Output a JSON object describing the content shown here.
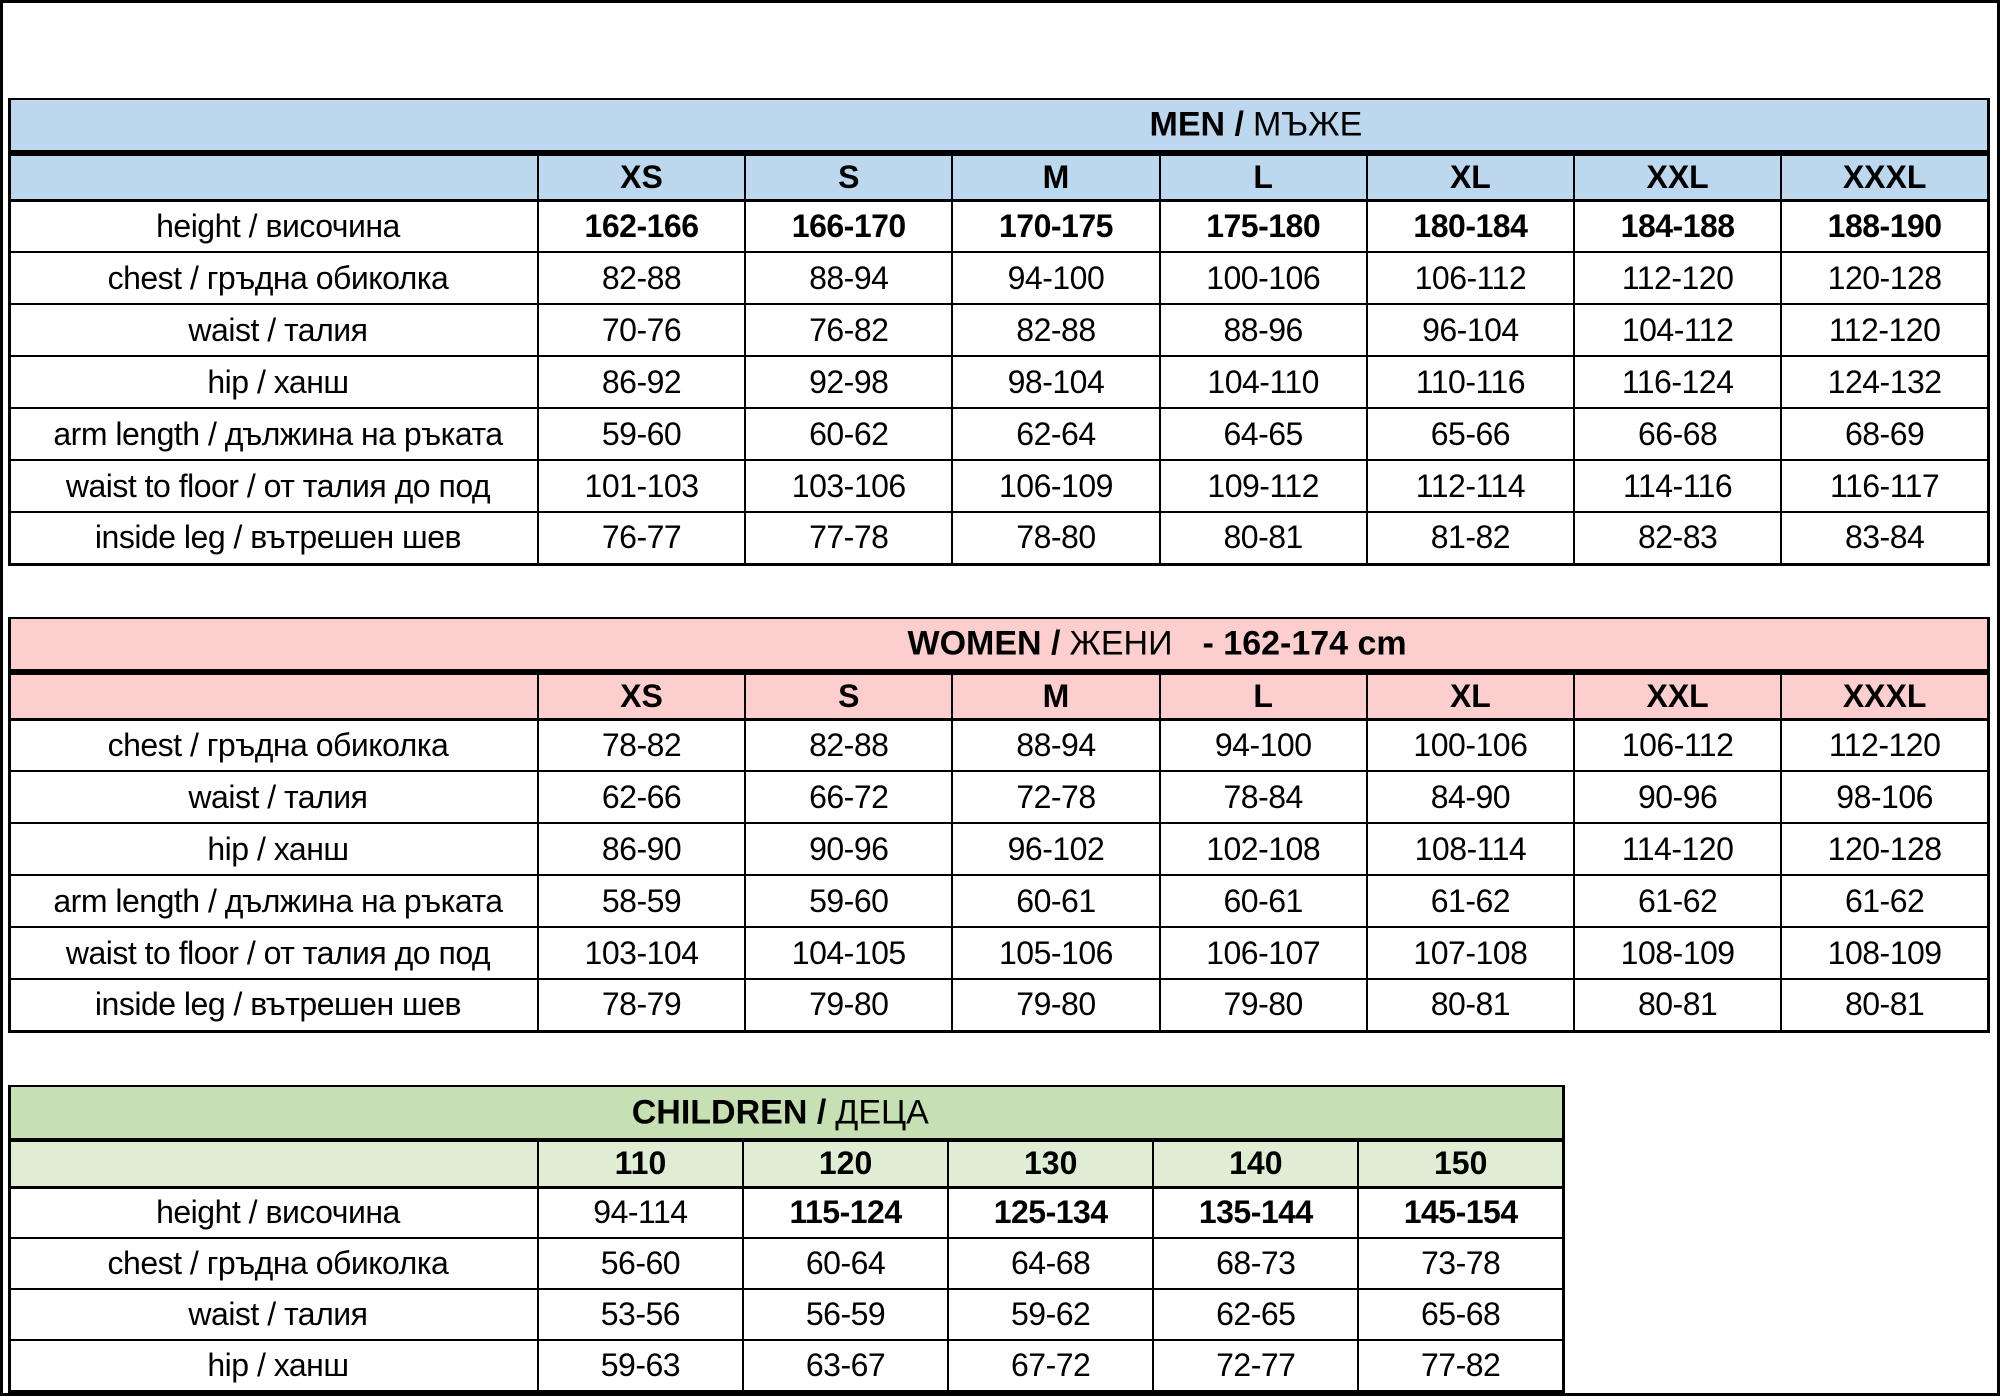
{
  "sheet": {
    "background": "#ffffff",
    "border_color": "#000000",
    "text_color": "#000000"
  },
  "sections": [
    {
      "id": "men",
      "title_en": "MEN /",
      "title_local": "МЪЖЕ",
      "title_suffix": "",
      "title_bg": "#BDD7EE",
      "header_bg": "#BDD7EE",
      "columns": [
        "XS",
        "S",
        "M",
        "L",
        "XL",
        "XXL",
        "XXXL"
      ],
      "rows": [
        {
          "label": "height / височина",
          "bold": true,
          "values": [
            "162-166",
            "166-170",
            "170-175",
            "175-180",
            "180-184",
            "184-188",
            "188-190"
          ]
        },
        {
          "label": "chest / гръдна обиколка",
          "values": [
            "82-88",
            "88-94",
            "94-100",
            "100-106",
            "106-112",
            "112-120",
            "120-128"
          ]
        },
        {
          "label": "waist / талия",
          "values": [
            "70-76",
            "76-82",
            "82-88",
            "88-96",
            "96-104",
            "104-112",
            "112-120"
          ]
        },
        {
          "label": "hip / ханш",
          "values": [
            "86-92",
            "92-98",
            "98-104",
            "104-110",
            "110-116",
            "116-124",
            "124-132"
          ]
        },
        {
          "label": "arm length / дължина на ръката",
          "values": [
            "59-60",
            "60-62",
            "62-64",
            "64-65",
            "65-66",
            "66-68",
            "68-69"
          ]
        },
        {
          "label": "waist to floor / от талия до под",
          "values": [
            "101-103",
            "103-106",
            "106-109",
            "109-112",
            "112-114",
            "114-116",
            "116-117"
          ]
        },
        {
          "label": "inside leg / вътрешен шев",
          "values": [
            "76-77",
            "77-78",
            "78-80",
            "80-81",
            "81-82",
            "82-83",
            "83-84"
          ]
        }
      ]
    },
    {
      "id": "women",
      "title_en": "WOMEN /",
      "title_local": "ЖЕНИ",
      "title_suffix": "- 162-174 cm",
      "title_bg": "#FCCECD",
      "header_bg": "#FCCECD",
      "columns": [
        "XS",
        "S",
        "M",
        "L",
        "XL",
        "XXL",
        "XXXL"
      ],
      "rows": [
        {
          "label": "chest / гръдна обиколка",
          "values": [
            "78-82",
            "82-88",
            "88-94",
            "94-100",
            "100-106",
            "106-112",
            "112-120"
          ]
        },
        {
          "label": "waist / талия",
          "values": [
            "62-66",
            "66-72",
            "72-78",
            "78-84",
            "84-90",
            "90-96",
            "98-106"
          ]
        },
        {
          "label": "hip / ханш",
          "values": [
            "86-90",
            "90-96",
            "96-102",
            "102-108",
            "108-114",
            "114-120",
            "120-128"
          ]
        },
        {
          "label": "arm length / дължина на ръката",
          "values": [
            "58-59",
            "59-60",
            "60-61",
            "60-61",
            "61-62",
            "61-62",
            "61-62"
          ]
        },
        {
          "label": "waist to floor / от талия до под",
          "values": [
            "103-104",
            "104-105",
            "105-106",
            "106-107",
            "107-108",
            "108-109",
            "108-109"
          ]
        },
        {
          "label": "inside leg / вътрешен шев",
          "values": [
            "78-79",
            "79-80",
            "79-80",
            "79-80",
            "80-81",
            "80-81",
            "80-81"
          ]
        }
      ]
    },
    {
      "id": "children",
      "title_en": "CHILDREN /",
      "title_local": "ДЕЦА",
      "title_suffix": "",
      "title_bg": "#C6DFB3",
      "header_bg": "#DFEDD5",
      "columns": [
        "110",
        "120",
        "130",
        "140",
        "150"
      ],
      "rows": [
        {
          "label": "height / височина",
          "bold_values": [
            false,
            true,
            true,
            true,
            true
          ],
          "values": [
            "94-114",
            "115-124",
            "125-134",
            "135-144",
            "145-154"
          ]
        },
        {
          "label": "chest / гръдна обиколка",
          "values": [
            "56-60",
            "60-64",
            "64-68",
            "68-73",
            "73-78"
          ]
        },
        {
          "label": "waist / талия",
          "values": [
            "53-56",
            "56-59",
            "59-62",
            "62-65",
            "65-68"
          ]
        },
        {
          "label": "hip / ханш",
          "values": [
            "59-63",
            "63-67",
            "67-72",
            "72-77",
            "77-82"
          ]
        }
      ]
    }
  ]
}
